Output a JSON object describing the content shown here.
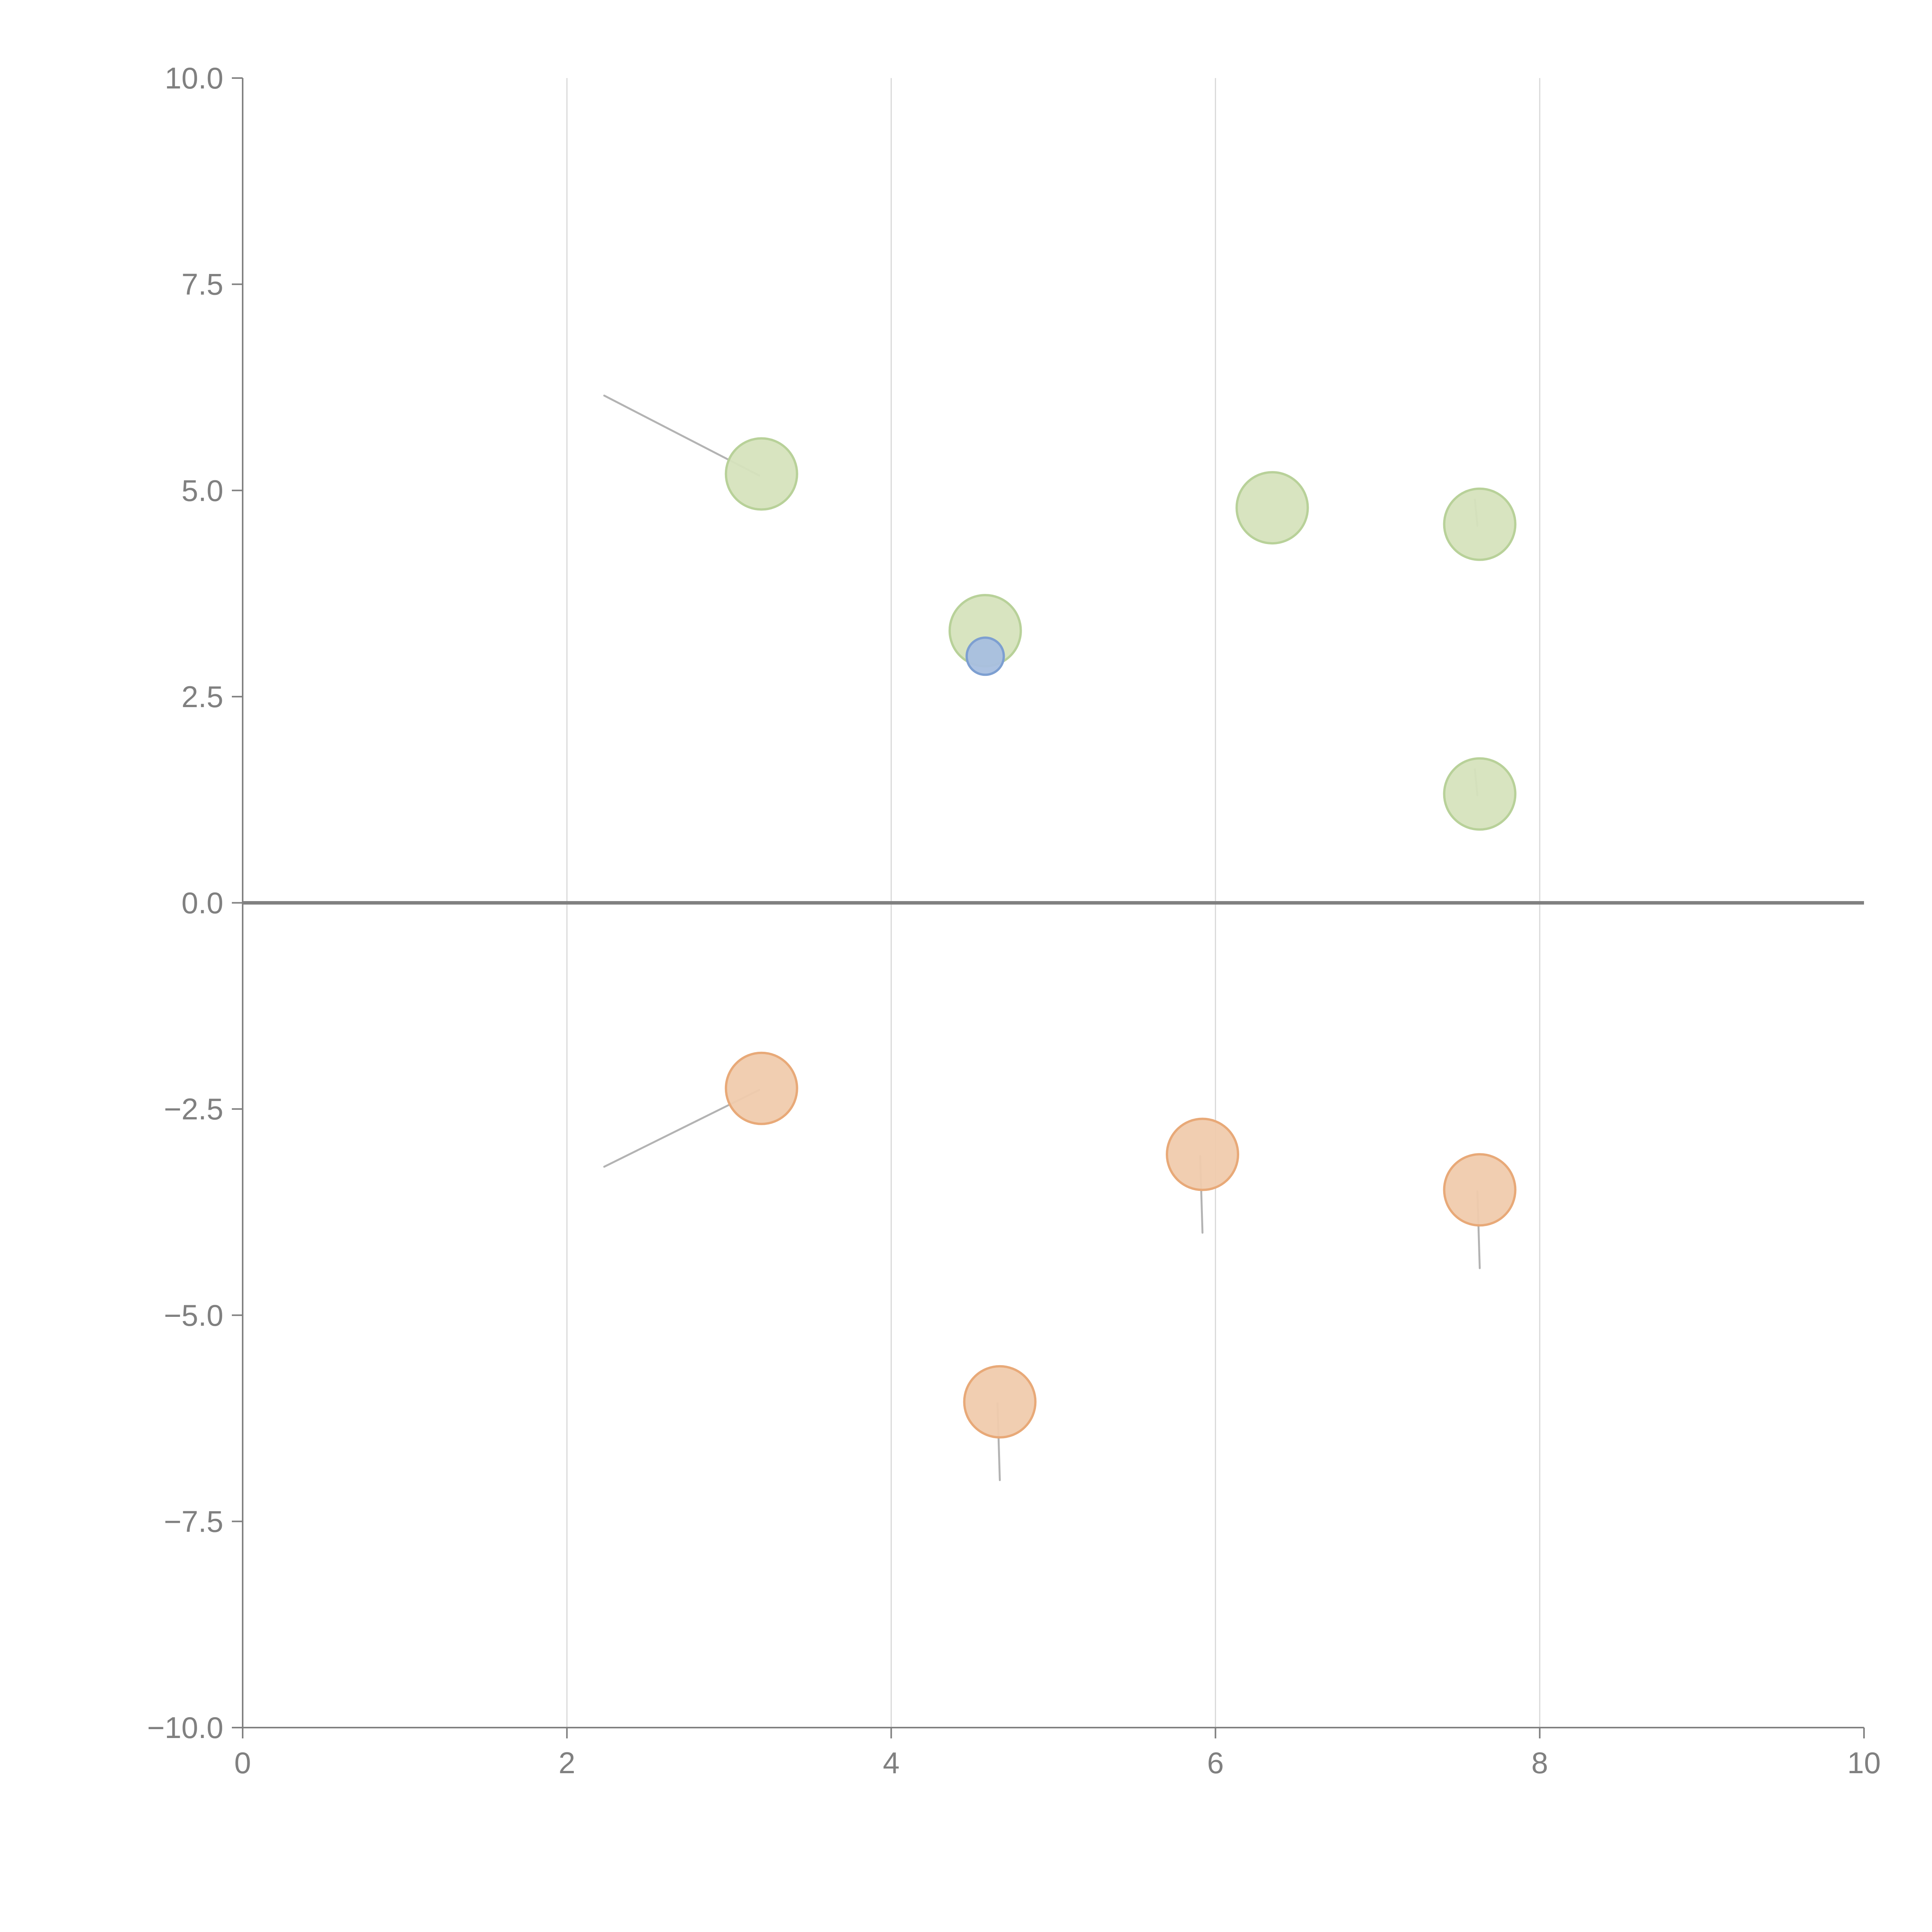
{
  "chart_data": {
    "type": "scatter",
    "title": "",
    "xlabel": "",
    "ylabel": "",
    "xlim": [
      0,
      10
    ],
    "ylim": [
      -10,
      10
    ],
    "x_ticks": [
      0,
      2,
      4,
      6,
      8,
      10
    ],
    "x_tick_labels": [
      "0",
      "2",
      "4",
      "6",
      "8",
      "10"
    ],
    "y_ticks": [
      10,
      7.5,
      5,
      2.5,
      0,
      -2.5,
      -5,
      -7.5,
      -10
    ],
    "y_tick_labels": [
      "10.0",
      "7.5",
      "5.0",
      "2.5",
      "0.0",
      "−2.5",
      "−5.0",
      "−7.5",
      "−10.0"
    ],
    "grid": "vertical",
    "zero_line": true,
    "colors": {
      "green_fill": "#d6e3bd",
      "green_stroke": "#b8d199",
      "orange_fill": "#f0cbad",
      "orange_stroke": "#e8a978",
      "blue_fill": "#a8bfdf",
      "blue_stroke": "#7d9fd1",
      "axis": "#808080",
      "grid": "#d9d9d9",
      "leader": "#b3b3b3"
    },
    "series": [
      {
        "name": "green",
        "points": [
          {
            "x": 3.2,
            "y": 5.2,
            "leader": {
              "dx": -0.97,
              "dy": 0.95
            }
          },
          {
            "x": 4.58,
            "y": 3.3
          },
          {
            "x": 6.35,
            "y": 4.79
          },
          {
            "x": 7.63,
            "y": 4.59,
            "leader": {
              "dx": -0.03,
              "dy": 0.3
            }
          },
          {
            "x": 7.63,
            "y": 1.32,
            "leader": {
              "dx": -0.03,
              "dy": 0.3
            }
          }
        ]
      },
      {
        "name": "blue",
        "points": [
          {
            "x": 4.58,
            "y": 2.99
          }
        ]
      },
      {
        "name": "orange",
        "points": [
          {
            "x": 3.2,
            "y": -2.25,
            "leader": {
              "dx": -0.97,
              "dy": -0.95
            }
          },
          {
            "x": 5.92,
            "y": -3.05,
            "leader": {
              "dx": 0.0,
              "dy": -0.95
            }
          },
          {
            "x": 7.63,
            "y": -3.48,
            "leader": {
              "dx": 0.0,
              "dy": -0.95
            }
          },
          {
            "x": 4.67,
            "y": -6.05,
            "leader": {
              "dx": 0.0,
              "dy": -0.95
            }
          }
        ]
      }
    ]
  }
}
